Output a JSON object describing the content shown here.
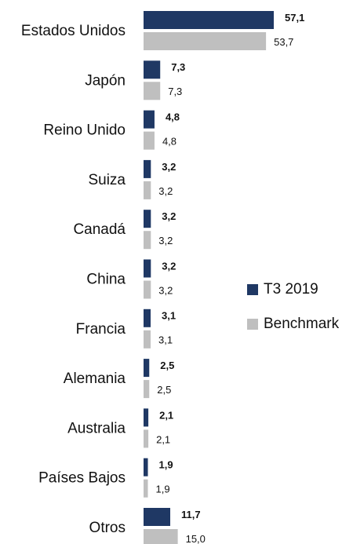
{
  "chart_data": {
    "type": "bar",
    "orientation": "horizontal",
    "categories": [
      "Estados Unidos",
      "Japón",
      "Reino Unido",
      "Suiza",
      "Canadá",
      "China",
      "Francia",
      "Alemania",
      "Australia",
      "Países Bajos",
      "Otros"
    ],
    "series": [
      {
        "name": "T3 2019",
        "color": "#1f3864",
        "values": [
          57.1,
          7.3,
          4.8,
          3.2,
          3.2,
          3.2,
          3.1,
          2.5,
          2.1,
          1.9,
          11.7
        ],
        "value_labels": [
          "57,1",
          "7,3",
          "4,8",
          "3,2",
          "3,2",
          "3,2",
          "3,1",
          "2,5",
          "2,1",
          "1,9",
          "11,7"
        ]
      },
      {
        "name": "Benchmark",
        "color": "#bfbfbf",
        "values": [
          53.7,
          7.3,
          4.8,
          3.2,
          3.2,
          3.2,
          3.1,
          2.5,
          2.1,
          1.9,
          15.0
        ],
        "value_labels": [
          "53,7",
          "7,3",
          "4,8",
          "3,2",
          "3,2",
          "3,2",
          "3,1",
          "2,5",
          "2,1",
          "1,9",
          "15,0"
        ]
      }
    ],
    "legend": "right"
  }
}
